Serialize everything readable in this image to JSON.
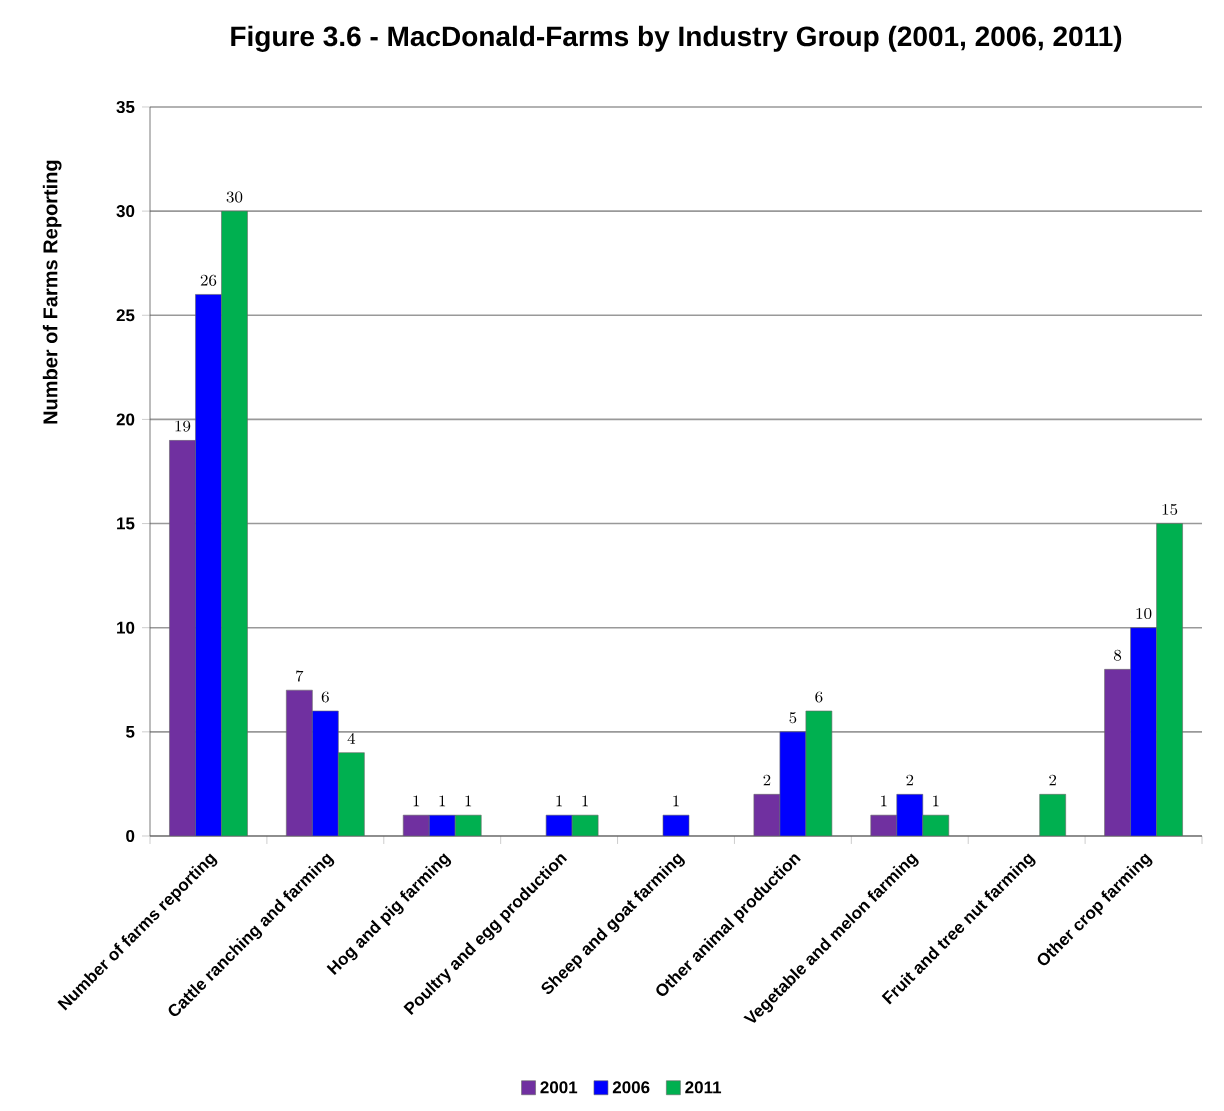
{
  "chart_data": {
    "type": "bar",
    "title": "Figure 3.6 - MacDonald-Farms by Industry Group (2001, 2006, 2011)",
    "ylabel": "Number of Farms Reporting",
    "categories": [
      "Number of farms reporting",
      "Cattle ranching and farming",
      "Hog and pig farming",
      "Poultry and egg production",
      "Sheep and goat farming",
      "Other animal production",
      "Vegetable and melon farming",
      "Fruit and tree nut farming",
      "Other crop farming"
    ],
    "series": [
      {
        "name": "2001",
        "color": "#7030a0",
        "values": [
          19,
          7,
          1,
          null,
          null,
          2,
          1,
          null,
          8
        ]
      },
      {
        "name": "2006",
        "color": "#0000ff",
        "values": [
          26,
          6,
          1,
          1,
          1,
          5,
          2,
          null,
          10
        ]
      },
      {
        "name": "2011",
        "color": "#00b050",
        "values": [
          30,
          4,
          1,
          1,
          null,
          6,
          1,
          2,
          15
        ]
      }
    ],
    "ylim": [
      0,
      35
    ],
    "yticks": [
      0,
      5,
      10,
      15,
      20,
      25,
      30,
      35
    ],
    "grid": "y",
    "legend": "bottom",
    "data_labels": true
  }
}
